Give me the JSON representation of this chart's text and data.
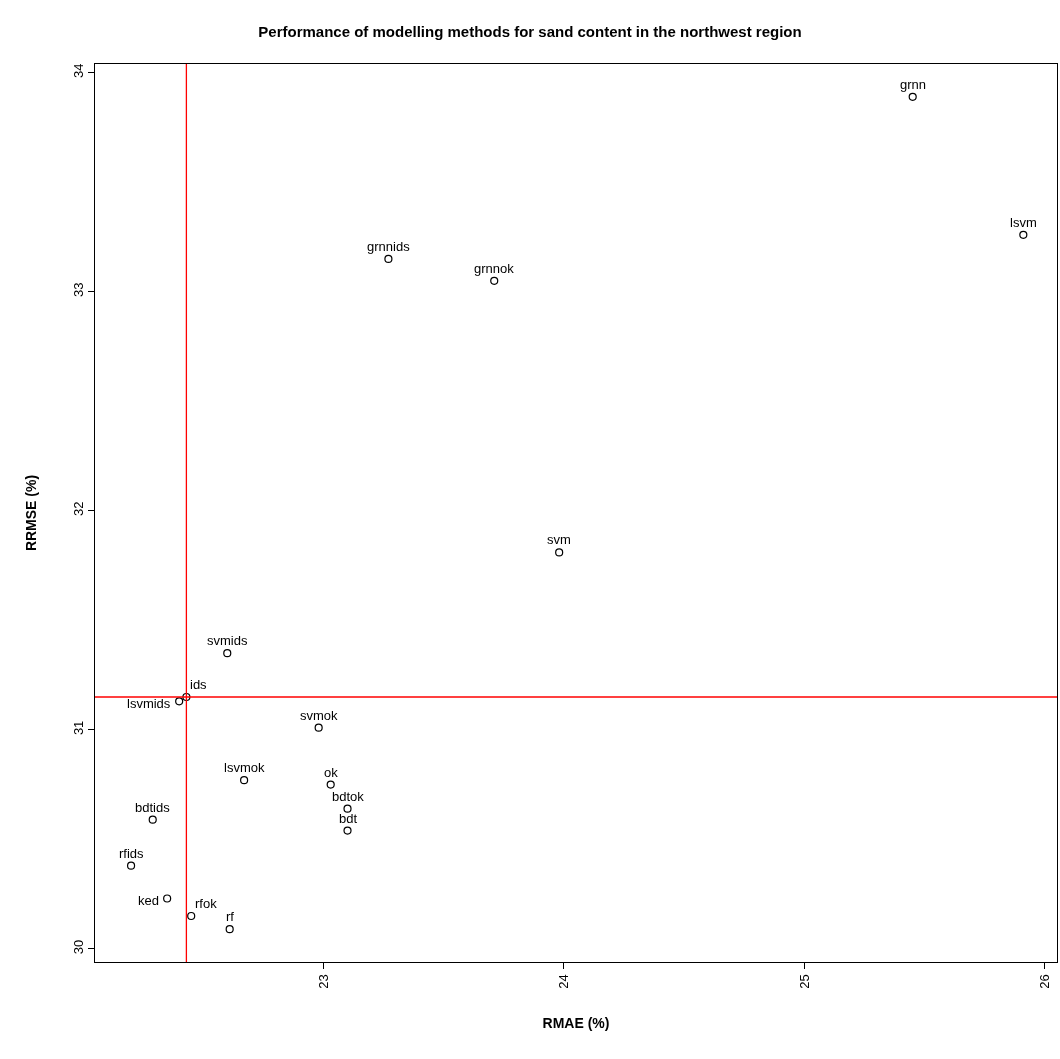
{
  "chart_data": {
    "type": "scatter",
    "title": "Performance of modelling methods for sand content in the northwest region",
    "xlabel": "RMAE (%)",
    "ylabel": "RRMSE (%)",
    "x": [
      25.45,
      25.91,
      23.27,
      23.71,
      23.98,
      22.6,
      22.4,
      22.43,
      22.98,
      22.67,
      23.03,
      23.1,
      23.1,
      22.29,
      22.2,
      22.35,
      22.45,
      22.61
    ],
    "series": [
      {
        "color": "#000000",
        "values": [
          33.89,
          33.26,
          33.15,
          33.05,
          31.81,
          31.35,
          31.13,
          31.15,
          31.01,
          30.77,
          30.75,
          30.64,
          30.54,
          30.59,
          30.38,
          30.23,
          30.15,
          30.09
        ]
      }
    ],
    "annotations": [
      {
        "text": "grnn",
        "x": 25.45,
        "y": 33.89
      },
      {
        "text": "lsvm",
        "x": 25.91,
        "y": 33.26
      },
      {
        "text": "grnnids",
        "x": 23.27,
        "y": 33.15
      },
      {
        "text": "grnnok",
        "x": 23.71,
        "y": 33.05
      },
      {
        "text": "svm",
        "x": 23.98,
        "y": 31.81
      },
      {
        "text": "svmids",
        "x": 22.6,
        "y": 31.35
      },
      {
        "text": "lsvmids",
        "x": 22.4,
        "y": 31.13
      },
      {
        "text": "ids",
        "x": 22.43,
        "y": 31.15
      },
      {
        "text": "svmok",
        "x": 22.98,
        "y": 31.01
      },
      {
        "text": "lsvmok",
        "x": 22.67,
        "y": 30.77
      },
      {
        "text": "ok",
        "x": 23.03,
        "y": 30.75
      },
      {
        "text": "bdtok",
        "x": 23.1,
        "y": 30.64
      },
      {
        "text": "bdt",
        "x": 23.1,
        "y": 30.54
      },
      {
        "text": "bdtids",
        "x": 22.29,
        "y": 30.59
      },
      {
        "text": "rfids",
        "x": 22.2,
        "y": 30.38
      },
      {
        "text": "ked",
        "x": 22.35,
        "y": 30.23
      },
      {
        "text": "rfok",
        "x": 22.45,
        "y": 30.15
      },
      {
        "text": "rf",
        "x": 22.61,
        "y": 30.09
      }
    ],
    "ref_lines": [
      {
        "axis": "x",
        "value": 22.43,
        "color": "#ff0000"
      },
      {
        "axis": "y",
        "value": 31.15,
        "color": "#ff0000"
      }
    ],
    "xlim": [
      22.05,
      26.05
    ],
    "ylim": [
      29.94,
      34.04
    ],
    "xticks": [
      23,
      24,
      25,
      26
    ],
    "yticks": [
      30,
      31,
      32,
      33,
      34
    ],
    "marker": "circle"
  }
}
